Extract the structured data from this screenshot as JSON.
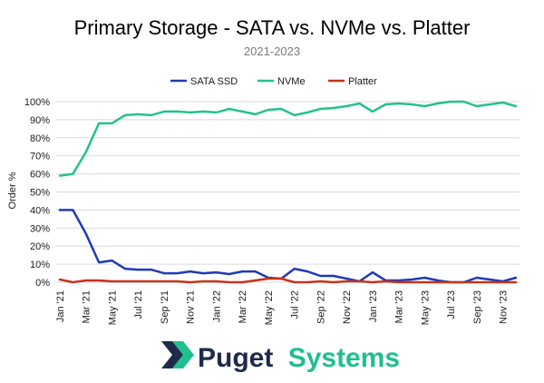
{
  "chart_data": {
    "type": "line",
    "title": "Primary Storage - SATA vs. NVMe vs. Platter",
    "subtitle": "2021-2023",
    "ylabel": "Order %",
    "xlabel": "",
    "ylim": [
      0,
      100
    ],
    "y_ticks": [
      "0%",
      "10%",
      "20%",
      "30%",
      "40%",
      "50%",
      "60%",
      "70%",
      "80%",
      "90%",
      "100%"
    ],
    "x_tick_labels": [
      "Jan '21",
      "Mar '21",
      "May '21",
      "Jul '21",
      "Sep '21",
      "Nov '21",
      "Jan '22",
      "Mar '22",
      "May '22",
      "Jul '22",
      "Sep '22",
      "Nov '22",
      "Jan '23",
      "Mar '23",
      "May '23",
      "Jul '23",
      "Sep '23",
      "Nov '23"
    ],
    "x": [
      "Jan '21",
      "Feb '21",
      "Mar '21",
      "Apr '21",
      "May '21",
      "Jun '21",
      "Jul '21",
      "Aug '21",
      "Sep '21",
      "Oct '21",
      "Nov '21",
      "Dec '21",
      "Jan '22",
      "Feb '22",
      "Mar '22",
      "Apr '22",
      "May '22",
      "Jun '22",
      "Jul '22",
      "Aug '22",
      "Sep '22",
      "Oct '22",
      "Nov '22",
      "Dec '22",
      "Jan '23",
      "Feb '23",
      "Mar '23",
      "Apr '23",
      "May '23",
      "Jun '23",
      "Jul '23",
      "Aug '23",
      "Sep '23",
      "Oct '23",
      "Nov '23",
      "Dec '23"
    ],
    "grid": true,
    "legend_position": "top",
    "series": [
      {
        "name": "SATA SSD",
        "color": "#1e3ab8",
        "values": [
          40,
          40,
          27,
          11,
          12,
          7.5,
          7,
          7,
          5,
          5,
          6,
          5,
          5.5,
          4.5,
          6,
          6,
          2.5,
          2,
          7.5,
          6,
          3.5,
          3.5,
          2,
          0.5,
          5.5,
          1,
          1,
          1.5,
          2.5,
          1,
          0,
          0,
          2.5,
          1.5,
          0.5,
          2.5
        ]
      },
      {
        "name": "NVMe",
        "color": "#24c18f",
        "values": [
          59,
          60,
          72,
          88,
          88,
          92.5,
          93,
          92.5,
          94.5,
          94.5,
          94,
          94.5,
          94,
          96,
          94.5,
          93,
          95.5,
          96,
          92.5,
          94,
          96,
          96.5,
          97.5,
          99,
          94.5,
          98.5,
          99,
          98.5,
          97.5,
          99,
          100,
          100,
          97.5,
          98.5,
          99.5,
          97.5
        ]
      },
      {
        "name": "Platter",
        "color": "#c8321a",
        "values": [
          1.5,
          0,
          1,
          1,
          0.5,
          0.5,
          0.5,
          0.5,
          0.5,
          0.5,
          0,
          0.5,
          0.5,
          0,
          0,
          1,
          2,
          2,
          0,
          0,
          0.5,
          0,
          0.5,
          0.5,
          0,
          0.5,
          0,
          0,
          0,
          0,
          0,
          0,
          0,
          0,
          0,
          0
        ]
      }
    ]
  },
  "brand": {
    "name_part1": "Puget",
    "name_part2": "Systems",
    "color_dark": "#1c2b4a",
    "color_accent": "#1fbf8f",
    "icon": "puget-systems-logo-icon"
  }
}
